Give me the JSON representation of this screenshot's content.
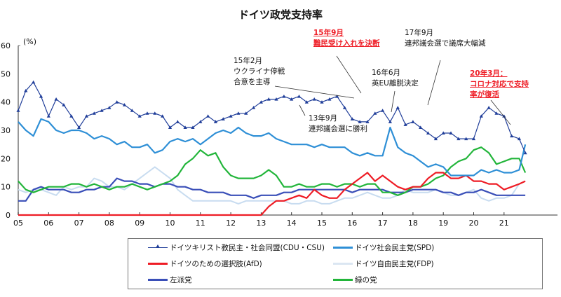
{
  "chart_data": {
    "type": "line",
    "title": "ドイツ政党支持率",
    "ylabel": "(%)",
    "xlabel": "",
    "ylim": [
      0,
      60
    ],
    "yticks": [
      0,
      10,
      20,
      30,
      40,
      50,
      60
    ],
    "xlim": [
      2005,
      2021.75
    ],
    "xtick_labels": [
      "05",
      "06",
      "07",
      "08",
      "09",
      "10",
      "11",
      "12",
      "13",
      "14",
      "15",
      "16",
      "17",
      "18",
      "19",
      "20",
      "21"
    ],
    "grid": false,
    "legend_position": "bottom",
    "x": [
      2005.0,
      2005.25,
      2005.5,
      2005.75,
      2006.0,
      2006.25,
      2006.5,
      2006.75,
      2007.0,
      2007.25,
      2007.5,
      2007.75,
      2008.0,
      2008.25,
      2008.5,
      2008.75,
      2009.0,
      2009.25,
      2009.5,
      2009.75,
      2010.0,
      2010.25,
      2010.5,
      2010.75,
      2011.0,
      2011.25,
      2011.5,
      2011.75,
      2012.0,
      2012.25,
      2012.5,
      2012.75,
      2013.0,
      2013.25,
      2013.5,
      2013.75,
      2014.0,
      2014.25,
      2014.5,
      2014.75,
      2015.0,
      2015.25,
      2015.5,
      2015.75,
      2016.0,
      2016.25,
      2016.5,
      2016.75,
      2017.0,
      2017.25,
      2017.5,
      2017.75,
      2018.0,
      2018.25,
      2018.5,
      2018.75,
      2019.0,
      2019.25,
      2019.5,
      2019.75,
      2020.0,
      2020.25,
      2020.5,
      2020.75,
      2021.0,
      2021.25,
      2021.5,
      2021.7
    ],
    "series": [
      {
        "name": "ドイツキリスト教民主・社会同盟(CDU・CSU)",
        "color": "#1f3d99",
        "marker": "triangle",
        "values": [
          37,
          44,
          47,
          42,
          35,
          41,
          39,
          35,
          31,
          35,
          36,
          37,
          38,
          40,
          39,
          37,
          35,
          36,
          36,
          35,
          31,
          33,
          31,
          31,
          33,
          35,
          33,
          34,
          35,
          36,
          36,
          38,
          40,
          41,
          41,
          42,
          41,
          42,
          40,
          41,
          40,
          41,
          42,
          38,
          34,
          33,
          33,
          36,
          37,
          33,
          38,
          32,
          33,
          31,
          29,
          27,
          29,
          29,
          27,
          27,
          27,
          35,
          38,
          36,
          35,
          28,
          27,
          22
        ]
      },
      {
        "name": "ドイツ社会民主党(SPD)",
        "color": "#2e8fd6",
        "values": [
          33,
          30,
          28,
          34,
          33,
          30,
          29,
          30,
          30,
          29,
          27,
          28,
          27,
          25,
          26,
          24,
          24,
          25,
          22,
          23,
          26,
          27,
          26,
          27,
          25,
          27,
          29,
          30,
          29,
          31,
          29,
          28,
          28,
          29,
          27,
          26,
          25,
          25,
          25,
          24,
          25,
          24,
          24,
          24,
          22,
          21,
          22,
          21,
          21,
          31,
          24,
          22,
          21,
          19,
          17,
          18,
          17,
          14,
          14,
          14,
          14,
          16,
          15,
          16,
          15,
          15,
          16,
          25
        ]
      },
      {
        "name": "ドイツのための選択肢(AfD)",
        "color": "#ee1c25",
        "values": [
          0,
          0,
          0,
          0,
          0,
          0,
          0,
          0,
          0,
          0,
          0,
          0,
          0,
          0,
          0,
          0,
          0,
          0,
          0,
          0,
          0,
          0,
          0,
          0,
          0,
          0,
          0,
          0,
          0,
          0,
          0,
          0,
          0,
          3,
          5,
          5,
          6,
          7,
          6,
          9,
          7,
          6,
          6,
          9,
          11,
          13,
          15,
          12,
          14,
          12,
          10,
          9,
          10,
          10,
          13,
          15,
          15,
          13,
          13,
          14,
          12,
          12,
          11,
          11,
          9,
          10,
          11,
          12
        ]
      },
      {
        "name": "ドイツ自由民主党(FDP)",
        "color": "#c8dcf0",
        "values": [
          9,
          8,
          9,
          9,
          8,
          7,
          10,
          9,
          10,
          10,
          13,
          12,
          10,
          10,
          9,
          11,
          13,
          15,
          17,
          15,
          13,
          9,
          7,
          5,
          5,
          5,
          5,
          5,
          5,
          4,
          5,
          5,
          5,
          5,
          5,
          5,
          4,
          4,
          5,
          5,
          4,
          4,
          5,
          6,
          6,
          7,
          8,
          7,
          6,
          6,
          7,
          9,
          8,
          8,
          8,
          9,
          8,
          7,
          7,
          8,
          9,
          6,
          5,
          6,
          6,
          7,
          11,
          12
        ]
      },
      {
        "name": "左派党",
        "color": "#3a4fb8",
        "values": [
          5,
          5,
          9,
          10,
          9,
          9,
          9,
          8,
          8,
          9,
          9,
          10,
          10,
          13,
          12,
          12,
          11,
          11,
          10,
          11,
          11,
          10,
          10,
          9,
          9,
          8,
          8,
          8,
          7,
          7,
          7,
          6,
          7,
          7,
          7,
          8,
          8,
          9,
          9,
          9,
          9,
          9,
          9,
          9,
          8,
          9,
          9,
          9,
          9,
          8,
          8,
          8,
          9,
          9,
          9,
          9,
          8,
          8,
          7,
          8,
          8,
          9,
          8,
          7,
          7,
          7,
          7,
          7
        ]
      },
      {
        "name": "緑の党",
        "color": "#22b53a",
        "values": [
          12,
          9,
          8,
          9,
          10,
          10,
          10,
          11,
          11,
          10,
          11,
          10,
          9,
          10,
          10,
          11,
          10,
          9,
          10,
          11,
          12,
          14,
          18,
          20,
          23,
          21,
          22,
          17,
          14,
          13,
          13,
          13,
          14,
          16,
          14,
          10,
          10,
          11,
          10,
          10,
          11,
          11,
          10,
          11,
          11,
          10,
          11,
          11,
          8,
          8,
          7,
          8,
          10,
          10,
          11,
          13,
          14,
          17,
          19,
          20,
          23,
          24,
          22,
          18,
          19,
          20,
          20,
          15
        ]
      }
    ],
    "annotations": [
      {
        "text": [
          "15年2月",
          "ウクライナ停戦",
          "合意を主導"
        ],
        "style": "normal",
        "x": 2015.1
      },
      {
        "text": [
          "15年9月",
          "難民受け入れを決断"
        ],
        "style": "red",
        "x": 2015.7
      },
      {
        "text": [
          "17年9月",
          "連邦議会選で議席大幅減"
        ],
        "style": "normal",
        "x": 2017.7
      },
      {
        "text": [
          "16年6月",
          "英EU離脱決定"
        ],
        "style": "normal",
        "x": 2016.5
      },
      {
        "text": [
          "13年9月",
          "連邦議会選に勝利"
        ],
        "style": "normal",
        "x": 2013.7
      },
      {
        "text": [
          "20年3月：",
          "コロナ対応で支持",
          "率が復活"
        ],
        "style": "red",
        "x": 2020.2
      }
    ]
  }
}
